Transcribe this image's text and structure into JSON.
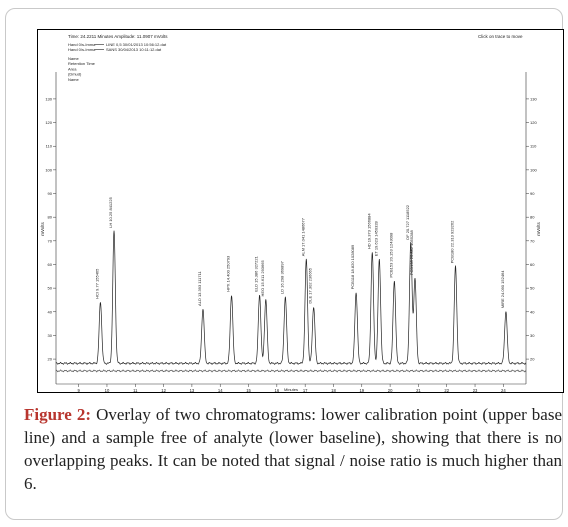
{
  "header": {
    "time_readout": "Time: 24.2211 Minutes  Amplitude: 11.0907 mVolts",
    "hint": "Click on trace to move",
    "traces": [
      "LINE 0,5 30/01/2013 10:56:12.dat",
      "SANS 30/04/2013 10:11:12.dat"
    ],
    "trace_tags": [
      "Hand 0/s-Imma",
      "Hand 0/s-Imma"
    ],
    "info_lines": [
      "Name",
      "Retention Time",
      "Area",
      "(Dmud)",
      "Name"
    ]
  },
  "caption": {
    "label": "Figure 2:",
    "text": "Overlay of two chromatograms: lower calibration point (upper base line) and a sample free of analyte (lower baseline), showing that there is no overlapping peaks. It can be noted that signal / noise ratio is much higher than 6."
  },
  "colors": {
    "trace_upper": "#222222",
    "trace_lower": "#555555",
    "caption_label": "#b8352e"
  },
  "chart_data": {
    "type": "line",
    "title": "",
    "xlabel": "Minutes",
    "ylabel": "mVolts",
    "xlim": [
      8.2,
      24.8
    ],
    "ylim": [
      12,
      138
    ],
    "x_ticks": [
      9,
      10,
      11,
      12,
      13,
      14,
      15,
      16,
      17,
      18,
      19,
      20,
      21,
      22,
      23,
      24
    ],
    "y_ticks": [
      20,
      30,
      40,
      50,
      60,
      70,
      80,
      90,
      100,
      110,
      120,
      130
    ],
    "grid": false,
    "baselines": [
      {
        "name": "LINE 0,5 30/01/2013 10:56:12.dat",
        "level": 18.2
      },
      {
        "name": "SANS 30/04/2013 10:11:12.dat",
        "level": 15.0
      }
    ],
    "peaks": [
      {
        "x": 9.77,
        "height": 26,
        "label": "HCI 9.77 155465"
      },
      {
        "x": 10.25,
        "height": 56,
        "label": "LH 10.25 841225"
      },
      {
        "x": 13.39,
        "height": 23,
        "label": "ALD 13.393 111711"
      },
      {
        "x": 14.4,
        "height": 29,
        "label": "HPX 14.400 250793"
      },
      {
        "x": 15.39,
        "height": 29,
        "label": "ELD 15.386 327221"
      },
      {
        "x": 15.61,
        "height": 27,
        "label": "HEO 15.611 293665"
      },
      {
        "x": 16.3,
        "height": 28,
        "label": "LD 16.298 369897"
      },
      {
        "x": 17.04,
        "height": 44,
        "label": "ALM 17.041 1486677"
      },
      {
        "x": 17.3,
        "height": 24,
        "label": "DLE 17.302 236665"
      },
      {
        "x": 18.8,
        "height": 30,
        "label": "PCB118 18.820 1028089"
      },
      {
        "x": 19.37,
        "height": 47,
        "label": "HD 19.373 1566884"
      },
      {
        "x": 19.62,
        "height": 44,
        "label": "ET 19.623 1450328"
      },
      {
        "x": 20.15,
        "height": 35,
        "label": "PCB153 20.153 1243098"
      },
      {
        "x": 20.73,
        "height": 51,
        "label": "DF 20.727 1118522"
      },
      {
        "x": 20.88,
        "height": 36,
        "label": "PCB138 20.882 1055288"
      },
      {
        "x": 22.31,
        "height": 41,
        "label": "PCB180 22.313 923262"
      },
      {
        "x": 24.09,
        "height": 22,
        "label": "MIRE 24.090 152464"
      }
    ]
  }
}
